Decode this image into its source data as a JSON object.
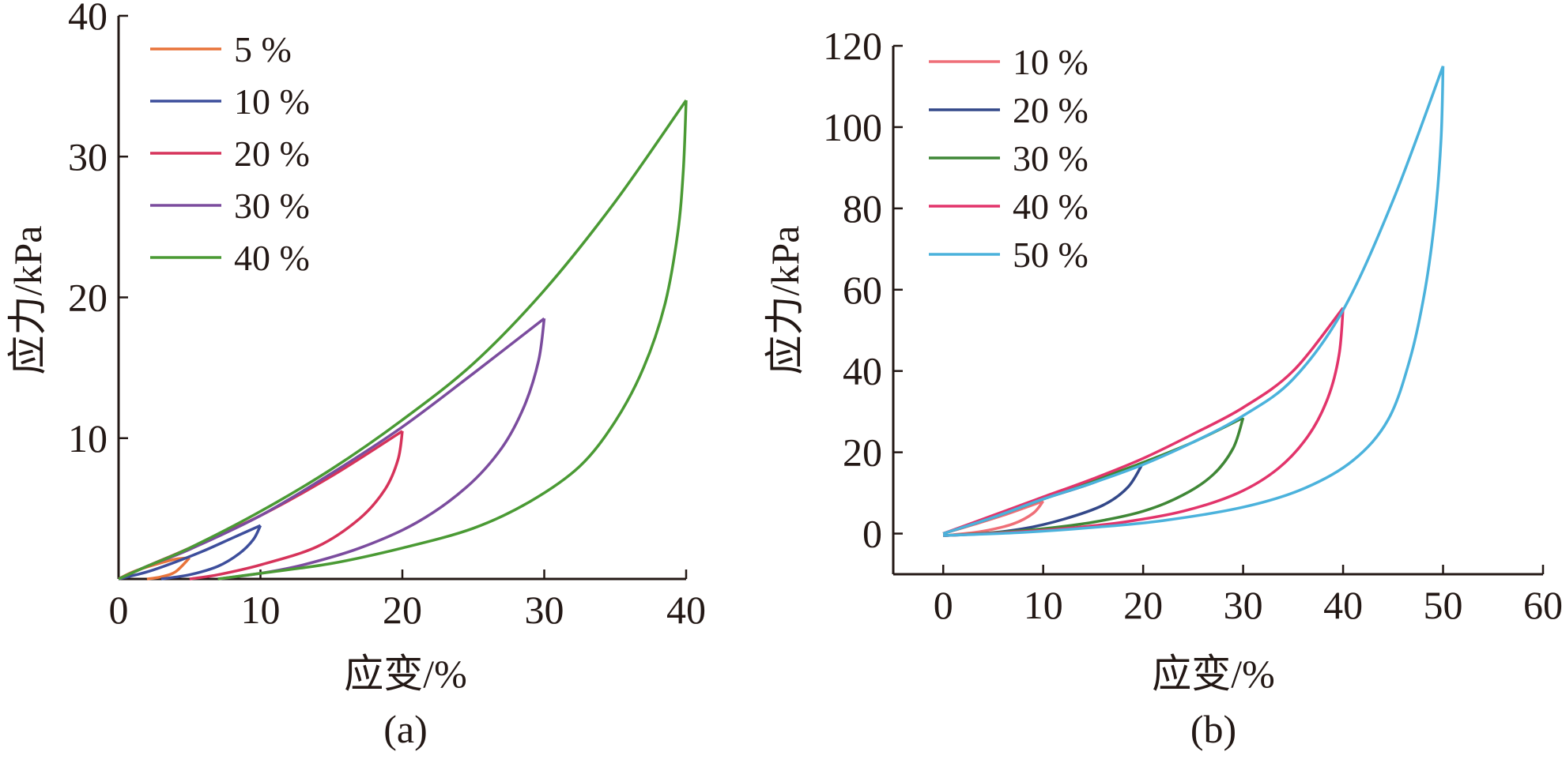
{
  "chart_data": [
    {
      "type": "line",
      "panel_label": "(a)",
      "xlabel": "应变/%",
      "ylabel": "应力/kPa",
      "xlim": [
        0,
        40
      ],
      "ylim": [
        0,
        40
      ],
      "xticks": [
        0,
        10,
        20,
        30,
        40
      ],
      "yticks": [
        10,
        20,
        30,
        40
      ],
      "legend_position": "top-left",
      "series": [
        {
          "name": "5 %",
          "color": "#e8743b",
          "loading": [
            [
              0,
              0
            ],
            [
              1,
              0.5
            ],
            [
              2.5,
              1.0
            ],
            [
              4,
              1.4
            ],
            [
              5,
              1.5
            ]
          ],
          "unloading": [
            [
              5,
              1.5
            ],
            [
              4,
              0.5
            ],
            [
              3,
              0.15
            ],
            [
              2,
              0
            ]
          ]
        },
        {
          "name": "10 %",
          "color": "#3d4e9c",
          "loading": [
            [
              0,
              0
            ],
            [
              2,
              0.5
            ],
            [
              4,
              1.2
            ],
            [
              6,
              2.0
            ],
            [
              8,
              2.9
            ],
            [
              10,
              3.8
            ]
          ],
          "unloading": [
            [
              10,
              3.8
            ],
            [
              9.5,
              2.8
            ],
            [
              8.5,
              1.8
            ],
            [
              7,
              0.9
            ],
            [
              5,
              0.3
            ],
            [
              3,
              0
            ]
          ]
        },
        {
          "name": "20 %",
          "color": "#d6335a",
          "loading": [
            [
              0,
              0
            ],
            [
              2,
              0.9
            ],
            [
              5,
              2.2
            ],
            [
              10,
              4.5
            ],
            [
              15,
              7.3
            ],
            [
              20,
              10.5
            ]
          ],
          "unloading": [
            [
              20,
              10.5
            ],
            [
              19.7,
              8.5
            ],
            [
              18.8,
              6.4
            ],
            [
              17,
              4.3
            ],
            [
              14,
              2.3
            ],
            [
              10,
              1.0
            ],
            [
              7,
              0.3
            ],
            [
              5,
              0
            ]
          ]
        },
        {
          "name": "30 %",
          "color": "#7b4c9e",
          "loading": [
            [
              0,
              0
            ],
            [
              2,
              0.9
            ],
            [
              5,
              2.1
            ],
            [
              10,
              4.5
            ],
            [
              15,
              7.5
            ],
            [
              20,
              10.8
            ],
            [
              25,
              14.6
            ],
            [
              30,
              18.5
            ]
          ],
          "unloading": [
            [
              30,
              18.5
            ],
            [
              29.6,
              15.5
            ],
            [
              28.6,
              12.3
            ],
            [
              27,
              9.3
            ],
            [
              24.5,
              6.5
            ],
            [
              21,
              4.0
            ],
            [
              17,
              2.2
            ],
            [
              13,
              1.0
            ],
            [
              10,
              0.4
            ],
            [
              7,
              0
            ]
          ]
        },
        {
          "name": "40 %",
          "color": "#4a9a34",
          "loading": [
            [
              0,
              0
            ],
            [
              2,
              0.9
            ],
            [
              5,
              2.2
            ],
            [
              10,
              4.8
            ],
            [
              15,
              7.8
            ],
            [
              20,
              11.3
            ],
            [
              25,
              15.3
            ],
            [
              30,
              20.5
            ],
            [
              35,
              26.8
            ],
            [
              40,
              34.0
            ]
          ],
          "unloading": [
            [
              40,
              34.0
            ],
            [
              39.8,
              29.0
            ],
            [
              39.4,
              24.5
            ],
            [
              38.5,
              19.5
            ],
            [
              37,
              15.0
            ],
            [
              35,
              11.2
            ],
            [
              32.5,
              8.0
            ],
            [
              29,
              5.5
            ],
            [
              25,
              3.6
            ],
            [
              20,
              2.2
            ],
            [
              15,
              1.1
            ],
            [
              10,
              0.4
            ],
            [
              7,
              0
            ]
          ]
        }
      ]
    },
    {
      "type": "line",
      "panel_label": "(b)",
      "xlabel": "应变/%",
      "ylabel": "应力/kPa",
      "xlim": [
        -5,
        60
      ],
      "ylim": [
        -10,
        120
      ],
      "xticks": [
        0,
        10,
        20,
        30,
        40,
        50,
        60
      ],
      "yticks": [
        0,
        20,
        40,
        60,
        80,
        100,
        120
      ],
      "legend_position": "top-left",
      "series": [
        {
          "name": "10 %",
          "color": "#ef6f78",
          "loading": [
            [
              0,
              0
            ],
            [
              3,
              2.2
            ],
            [
              6,
              4.5
            ],
            [
              10,
              8.0
            ]
          ],
          "unloading": [
            [
              10,
              8.0
            ],
            [
              9,
              5.0
            ],
            [
              7,
              2.4
            ],
            [
              4,
              0.6
            ],
            [
              1,
              -0.3
            ],
            [
              0,
              -0.5
            ]
          ]
        },
        {
          "name": "20 %",
          "color": "#334889",
          "loading": [
            [
              0,
              0
            ],
            [
              5,
              4.0
            ],
            [
              10,
              8.5
            ],
            [
              15,
              12.5
            ],
            [
              20,
              17.5
            ]
          ],
          "unloading": [
            [
              20,
              17.5
            ],
            [
              18.5,
              11.5
            ],
            [
              16,
              7.0
            ],
            [
              12,
              3.5
            ],
            [
              8,
              1.2
            ],
            [
              4,
              0
            ],
            [
              0,
              -0.5
            ]
          ]
        },
        {
          "name": "30 %",
          "color": "#3f8736",
          "loading": [
            [
              0,
              0
            ],
            [
              5,
              4.0
            ],
            [
              10,
              8.5
            ],
            [
              15,
              13.0
            ],
            [
              20,
              17.5
            ],
            [
              25,
              22.5
            ],
            [
              30,
              28.5
            ]
          ],
          "unloading": [
            [
              30,
              28.5
            ],
            [
              29,
              21.0
            ],
            [
              27,
              14.5
            ],
            [
              24,
              9.5
            ],
            [
              20,
              5.5
            ],
            [
              15,
              2.8
            ],
            [
              10,
              1.2
            ],
            [
              5,
              0.2
            ],
            [
              0,
              -0.5
            ]
          ]
        },
        {
          "name": "40 %",
          "color": "#e2346b",
          "loading": [
            [
              0,
              0
            ],
            [
              5,
              4.5
            ],
            [
              10,
              9.0
            ],
            [
              15,
              13.5
            ],
            [
              20,
              18.5
            ],
            [
              25,
              24.5
            ],
            [
              30,
              31.0
            ],
            [
              35,
              40.0
            ],
            [
              40,
              55.5
            ]
          ],
          "unloading": [
            [
              40,
              55.5
            ],
            [
              39.6,
              44.0
            ],
            [
              38.5,
              33.5
            ],
            [
              36.5,
              24.0
            ],
            [
              33.5,
              16.0
            ],
            [
              29.5,
              10.0
            ],
            [
              24,
              5.5
            ],
            [
              18,
              2.8
            ],
            [
              12,
              1.2
            ],
            [
              6,
              0.2
            ],
            [
              0,
              -0.5
            ]
          ]
        },
        {
          "name": "50 %",
          "color": "#4bb2dc",
          "loading": [
            [
              0,
              0
            ],
            [
              5,
              4.0
            ],
            [
              10,
              8.5
            ],
            [
              15,
              12.5
            ],
            [
              20,
              17.0
            ],
            [
              25,
              22.5
            ],
            [
              30,
              29.0
            ],
            [
              35,
              38.0
            ],
            [
              40,
              55.0
            ],
            [
              45,
              82.0
            ],
            [
              50,
              115.0
            ]
          ],
          "unloading": [
            [
              50,
              115.0
            ],
            [
              49.8,
              97.0
            ],
            [
              49.2,
              78.0
            ],
            [
              48.2,
              60.0
            ],
            [
              46.7,
              43.0
            ],
            [
              44.5,
              28.0
            ],
            [
              41,
              18.0
            ],
            [
              36,
              11.0
            ],
            [
              30,
              6.5
            ],
            [
              22,
              3.2
            ],
            [
              15,
              1.5
            ],
            [
              8,
              0.3
            ],
            [
              0,
              -0.5
            ]
          ]
        }
      ]
    }
  ]
}
